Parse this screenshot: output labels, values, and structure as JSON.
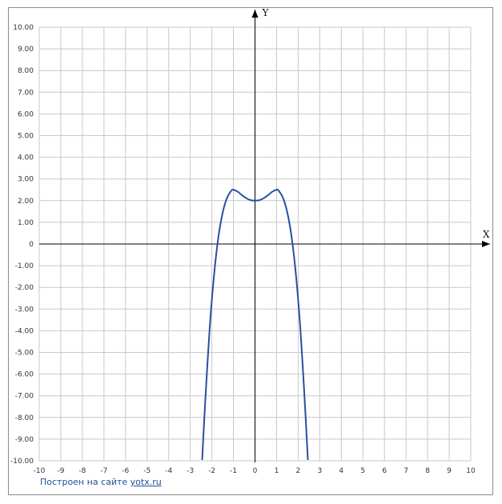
{
  "chart_data": {
    "type": "line",
    "title": "",
    "xlabel": "X",
    "ylabel": "Y",
    "xlim": [
      -10,
      10
    ],
    "ylim": [
      -10,
      10
    ],
    "grid": true,
    "x_ticks": [
      "-10",
      "-9",
      "-8",
      "-7",
      "-6",
      "-5",
      "-4",
      "-3",
      "-2",
      "-1",
      "0",
      "1",
      "2",
      "3",
      "4",
      "5",
      "6",
      "7",
      "8",
      "9",
      "10"
    ],
    "y_ticks": [
      "10.00",
      "9.00",
      "8.00",
      "7.00",
      "6.00",
      "5.00",
      "4.00",
      "3.00",
      "2.00",
      "1.00",
      "0",
      "-1.00",
      "-2.00",
      "-3.00",
      "-4.00",
      "-5.00",
      "-6.00",
      "-7.00",
      "-8.00",
      "-9.00",
      "-10.00"
    ],
    "series": [
      {
        "color": "#2a4f9f",
        "x": [
          -2.45,
          -2.3,
          -2.1,
          -1.9,
          -1.7,
          -1.5,
          -1.3,
          -1.1,
          -1.0,
          -0.8,
          -0.6,
          -0.4,
          -0.2,
          0,
          0.2,
          0.4,
          0.6,
          0.8,
          1.0,
          1.1,
          1.3,
          1.5,
          1.7,
          1.9,
          2.1,
          2.3,
          2.45
        ],
        "y": [
          -9.96,
          -7.15,
          -3.88,
          -1.45,
          0.3,
          1.44,
          2.12,
          2.46,
          2.5,
          2.41,
          2.25,
          2.11,
          2.02,
          2.0,
          2.02,
          2.11,
          2.25,
          2.41,
          2.5,
          2.46,
          2.12,
          1.44,
          0.3,
          -1.45,
          -3.88,
          -7.15,
          -9.96
        ]
      }
    ]
  },
  "colors": {
    "grid": "#c8c8c8",
    "axis": "#000000",
    "curve": "#2a4f9f",
    "credit": "#1f4e99"
  },
  "credit": {
    "prefix": "Построен на сайте",
    "link": "yotx.ru"
  }
}
